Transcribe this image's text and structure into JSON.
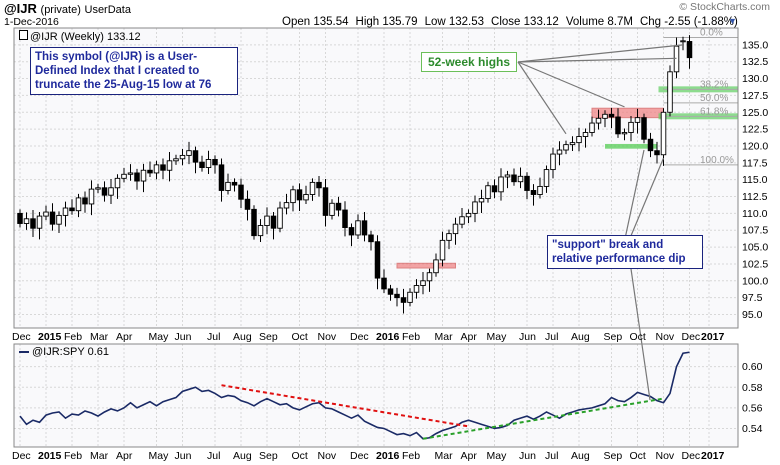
{
  "header": {
    "symbol": "@IJR",
    "qualifier": "(private)",
    "source": "UserData",
    "date": "1-Dec-2016",
    "brand": "© StockCharts.com",
    "stats": [
      {
        "label": "Open",
        "value": "135.54"
      },
      {
        "label": "High",
        "value": "135.79"
      },
      {
        "label": "Low",
        "value": "132.53"
      },
      {
        "label": "Close",
        "value": "133.12"
      },
      {
        "label": "Volume",
        "value": "8.7M"
      },
      {
        "label": "Chg",
        "value": "-2.55 (-1.88%)"
      }
    ]
  },
  "upper_legend": "@IJR (Weekly) 133.12",
  "lower_legend": "@IJR:SPY 0.61",
  "annotations": {
    "note_box": "This symbol (@IJR) is a User-Defined Index that I created to truncate the 25-Aug-15 low at 76",
    "highs_label": "52-week highs",
    "support_box": "\"support\" break and relative performance dip"
  },
  "fib_levels": [
    {
      "label": "38.2%",
      "value": 128.4
    },
    {
      "label": "50.0%",
      "value": 126.4
    },
    {
      "label": "61.8%",
      "value": 124.4
    },
    {
      "label": "100.0%",
      "value": 117.2
    },
    {
      "label": "0.0%",
      "value": 136.1
    }
  ],
  "colors": {
    "up_candle": "#ffffff",
    "down_candle": "#000000",
    "ratio_line": "#1a2a66",
    "down_trend": "#e01010",
    "up_trend": "#2aa02a",
    "resistance_zone": "#f08080",
    "support_zone": "#5fcf5f",
    "grid": "#d8d8d8"
  },
  "chart_data": [
    {
      "type": "candlestick",
      "title": "@IJR (Weekly) 133.12",
      "ylim": [
        93,
        137.5
      ],
      "yticks": [
        95,
        97.5,
        100,
        102.5,
        105,
        107.5,
        110,
        112.5,
        115,
        117.5,
        120,
        122.5,
        125,
        127.5,
        130,
        132.5,
        135
      ],
      "ytick_labels": [
        "95.0",
        "97.5",
        "100.0",
        "102.5",
        "105.0",
        "107.5",
        "110.0",
        "112.5",
        "115.0",
        "117.5",
        "120.0",
        "122.5",
        "125.0",
        "127.5",
        "130.0",
        "132.5",
        "135.0"
      ],
      "x_labels": [
        {
          "week": 0,
          "text": "Dec"
        },
        {
          "week": 4,
          "text": "2015"
        },
        {
          "week": 8,
          "text": "Feb"
        },
        {
          "week": 12,
          "text": "Mar"
        },
        {
          "week": 16,
          "text": "Apr"
        },
        {
          "week": 21,
          "text": "May"
        },
        {
          "week": 25,
          "text": "Jun"
        },
        {
          "week": 30,
          "text": "Jul"
        },
        {
          "week": 34,
          "text": "Aug"
        },
        {
          "week": 38,
          "text": "Sep"
        },
        {
          "week": 43,
          "text": "Oct"
        },
        {
          "week": 47,
          "text": "Nov"
        },
        {
          "week": 52,
          "text": "Dec"
        },
        {
          "week": 56,
          "text": "2016"
        },
        {
          "week": 60,
          "text": "Feb"
        },
        {
          "week": 65,
          "text": "Mar"
        },
        {
          "week": 69,
          "text": "Apr"
        },
        {
          "week": 73,
          "text": "May"
        },
        {
          "week": 78,
          "text": "Jun"
        },
        {
          "week": 82,
          "text": "Jul"
        },
        {
          "week": 86,
          "text": "Aug"
        },
        {
          "week": 91,
          "text": "Sep"
        },
        {
          "week": 95,
          "text": "Oct"
        },
        {
          "week": 99,
          "text": "Nov"
        },
        {
          "week": 103,
          "text": "Dec"
        },
        {
          "week": 106,
          "text": "2017"
        }
      ],
      "close": [
        108.5,
        109.2,
        107.8,
        109.6,
        110.2,
        108.4,
        109.7,
        110.8,
        110.4,
        112.3,
        111.4,
        113.6,
        113.8,
        112.7,
        113.8,
        115.2,
        115.8,
        116.0,
        114.8,
        116.4,
        116.0,
        117.2,
        116.4,
        117.8,
        118.1,
        118.6,
        119.3,
        117.6,
        116.8,
        118.0,
        117.2,
        113.4,
        114.6,
        114.2,
        112.1,
        110.6,
        106.7,
        108.2,
        109.6,
        107.8,
        110.8,
        111.6,
        113.5,
        112.0,
        112.8,
        114.6,
        113.8,
        109.7,
        111.5,
        110.5,
        107.9,
        106.8,
        108.9,
        106.8,
        105.8,
        100.4,
        98.8,
        98.0,
        97.5,
        96.8,
        98.3,
        99.3,
        100.0,
        101.2,
        103.1,
        106.0,
        107.0,
        108.4,
        109.5,
        110.0,
        111.7,
        112.2,
        114.1,
        113.2,
        115.4,
        115.7,
        114.7,
        115.5,
        113.4,
        112.8,
        114.0,
        116.5,
        118.8,
        119.4,
        120.2,
        120.5,
        121.4,
        122.0,
        123.4,
        124.1,
        124.7,
        124.3,
        121.8,
        122.0,
        123.5,
        124.2,
        121.0,
        119.3,
        118.7,
        125.0,
        131.0,
        134.8,
        135.6,
        133.1
      ],
      "open": [
        110.0,
        108.5,
        109.2,
        107.8,
        109.6,
        110.2,
        108.4,
        109.7,
        110.8,
        110.4,
        112.3,
        111.4,
        113.6,
        113.8,
        112.7,
        113.8,
        115.2,
        115.8,
        116.0,
        114.8,
        116.4,
        116.0,
        117.2,
        116.4,
        117.8,
        118.1,
        118.6,
        119.3,
        117.6,
        116.8,
        118.0,
        117.2,
        113.4,
        114.6,
        114.2,
        112.1,
        110.6,
        106.7,
        108.2,
        109.6,
        107.8,
        110.8,
        111.6,
        113.5,
        112.0,
        112.8,
        114.6,
        113.8,
        109.7,
        111.5,
        110.5,
        107.9,
        106.8,
        108.9,
        106.8,
        105.8,
        100.4,
        98.8,
        98.0,
        97.5,
        96.8,
        98.3,
        99.3,
        100.0,
        101.2,
        103.1,
        106.0,
        107.0,
        108.4,
        109.5,
        110.0,
        111.7,
        112.2,
        114.1,
        113.2,
        115.4,
        115.7,
        114.7,
        115.5,
        113.4,
        112.8,
        114.0,
        116.5,
        118.8,
        119.4,
        120.2,
        120.5,
        121.4,
        122.0,
        123.4,
        124.1,
        124.7,
        124.3,
        121.8,
        122.0,
        123.5,
        124.2,
        121.0,
        119.3,
        118.7,
        125.0,
        131.0,
        135.5,
        135.5
      ]
    },
    {
      "type": "line",
      "title": "@IJR:SPY 0.61",
      "ylim": [
        0.522,
        0.622
      ],
      "yticks": [
        0.54,
        0.56,
        0.58,
        0.6
      ],
      "ytick_labels": [
        "0.54",
        "0.56",
        "0.58",
        "0.60"
      ],
      "values": [
        0.552,
        0.544,
        0.548,
        0.546,
        0.553,
        0.555,
        0.556,
        0.55,
        0.554,
        0.553,
        0.557,
        0.555,
        0.552,
        0.556,
        0.559,
        0.557,
        0.56,
        0.565,
        0.56,
        0.563,
        0.566,
        0.562,
        0.566,
        0.568,
        0.57,
        0.576,
        0.578,
        0.58,
        0.576,
        0.577,
        0.574,
        0.57,
        0.572,
        0.571,
        0.567,
        0.565,
        0.562,
        0.566,
        0.569,
        0.566,
        0.563,
        0.564,
        0.56,
        0.558,
        0.561,
        0.564,
        0.565,
        0.56,
        0.559,
        0.556,
        0.553,
        0.55,
        0.553,
        0.547,
        0.544,
        0.541,
        0.54,
        0.537,
        0.534,
        0.535,
        0.533,
        0.536,
        0.53,
        0.531,
        0.535,
        0.538,
        0.54,
        0.542,
        0.546,
        0.548,
        0.546,
        0.544,
        0.542,
        0.54,
        0.541,
        0.543,
        0.548,
        0.55,
        0.552,
        0.549,
        0.552,
        0.556,
        0.553,
        0.55,
        0.554,
        0.556,
        0.558,
        0.559,
        0.56,
        0.562,
        0.564,
        0.57,
        0.567,
        0.566,
        0.57,
        0.575,
        0.573,
        0.571,
        0.567,
        0.565,
        0.574,
        0.6,
        0.613,
        0.614
      ],
      "trendlines": [
        {
          "name": "down",
          "from": [
            31,
            0.582
          ],
          "to": [
            69,
            0.542
          ]
        },
        {
          "name": "up",
          "from": [
            62,
            0.53
          ],
          "to": [
            99,
            0.569
          ]
        }
      ]
    }
  ]
}
